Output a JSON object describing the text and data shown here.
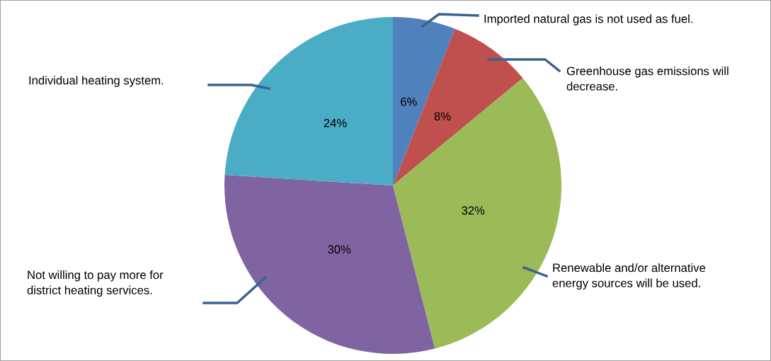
{
  "chart_data": {
    "type": "pie",
    "categories": [
      "Imported natural gas is not used as fuel.",
      "Greenhouse gas emissions will\ndecrease.",
      "Renewable and/or alternative\nenergy sources will be used.",
      "Not willing to pay more for\ndistrict heating services.",
      "Individual heating system."
    ],
    "values": [
      6,
      8,
      32,
      30,
      24
    ],
    "value_labels": [
      "6%",
      "8%",
      "32%",
      "30%",
      "24%"
    ],
    "colors": [
      "#4f81bd",
      "#c0504d",
      "#9bbb59",
      "#8064a2",
      "#4bacc6"
    ]
  }
}
